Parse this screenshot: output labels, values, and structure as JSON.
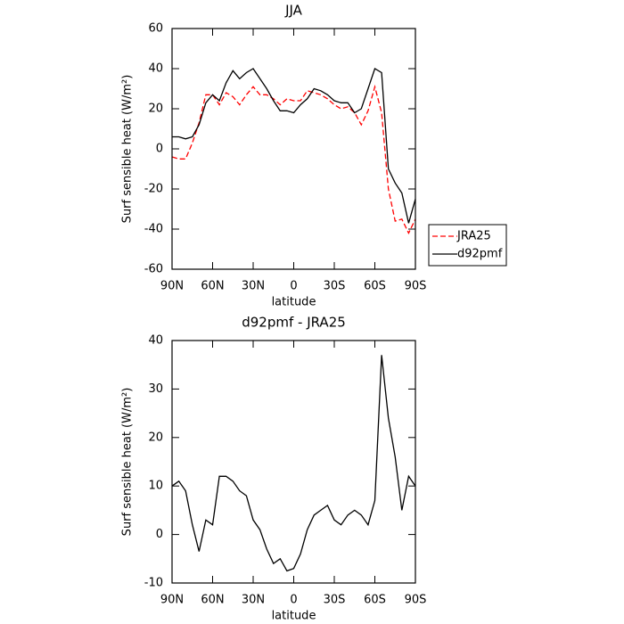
{
  "chart_data": [
    {
      "type": "line",
      "title": "JJA",
      "xlabel": "latitude",
      "ylabel": "Surf sensible heat (W/m²)",
      "x": [
        90,
        85,
        80,
        75,
        70,
        65,
        60,
        55,
        50,
        45,
        40,
        35,
        30,
        25,
        20,
        15,
        10,
        5,
        0,
        -5,
        -10,
        -15,
        -20,
        -25,
        -30,
        -35,
        -40,
        -45,
        -50,
        -55,
        -60,
        -65,
        -70,
        -75,
        -80,
        -85,
        -90
      ],
      "series": [
        {
          "name": "JRA25",
          "color": "#ff0000",
          "linestyle": "dashed",
          "values": [
            -4,
            -5,
            -5,
            3,
            13,
            27,
            27,
            22,
            28,
            26,
            22,
            27,
            31,
            27,
            27,
            25,
            22,
            25,
            24,
            24,
            29,
            28,
            27,
            25,
            22,
            20,
            21,
            18,
            12,
            19,
            31,
            18,
            -20,
            -36,
            -35,
            -42,
            -35
          ]
        },
        {
          "name": "d92pmf",
          "color": "#000000",
          "linestyle": "solid",
          "values": [
            6,
            6,
            5,
            6,
            12,
            23,
            27,
            24,
            33,
            39,
            35,
            38,
            40,
            35,
            30,
            24,
            19,
            19,
            18,
            22,
            25,
            30,
            29,
            27,
            24,
            23,
            23,
            18,
            20,
            30,
            40,
            38,
            -10,
            -17,
            -22,
            -37,
            -25
          ]
        }
      ],
      "xlim": [
        90,
        -90
      ],
      "xticks": [
        {
          "value": 90,
          "label": "90N"
        },
        {
          "value": 60,
          "label": "60N"
        },
        {
          "value": 30,
          "label": "30N"
        },
        0,
        {
          "value": -30,
          "label": "30S"
        },
        {
          "value": -60,
          "label": "60S"
        },
        {
          "value": -90,
          "label": "90S"
        }
      ],
      "ylim": [
        -60,
        60
      ],
      "yticks": [
        -60,
        -40,
        -20,
        0,
        20,
        40,
        60
      ],
      "legend": "right"
    },
    {
      "type": "line",
      "title": "d92pmf - JRA25",
      "xlabel": "latitude",
      "ylabel": "Surf sensible heat (W/m²)",
      "x": [
        90,
        85,
        80,
        75,
        70,
        65,
        60,
        55,
        50,
        45,
        40,
        35,
        30,
        25,
        20,
        15,
        10,
        5,
        0,
        -5,
        -10,
        -15,
        -20,
        -25,
        -30,
        -35,
        -40,
        -45,
        -50,
        -55,
        -60,
        -65,
        -70,
        -75,
        -80,
        -85,
        -90
      ],
      "color": "#000000",
      "values": [
        10,
        11,
        9,
        2,
        -3.5,
        3,
        2,
        12,
        12,
        11,
        9,
        8,
        3,
        1,
        -3,
        -6,
        -5,
        -7.5,
        -7,
        -4,
        1,
        4,
        5,
        6,
        3,
        2,
        4,
        5,
        4,
        2,
        7,
        37,
        24,
        16,
        5,
        12,
        10
      ],
      "xlim": [
        90,
        -90
      ],
      "xticks": [
        {
          "value": 90,
          "label": "90N"
        },
        {
          "value": 60,
          "label": "60N"
        },
        {
          "value": 30,
          "label": "30N"
        },
        0,
        {
          "value": -30,
          "label": "30S"
        },
        {
          "value": -60,
          "label": "60S"
        },
        {
          "value": -90,
          "label": "90S"
        }
      ],
      "ylim": [
        -10,
        40
      ],
      "yticks": [
        -10,
        0,
        10,
        20,
        30,
        40
      ]
    }
  ]
}
